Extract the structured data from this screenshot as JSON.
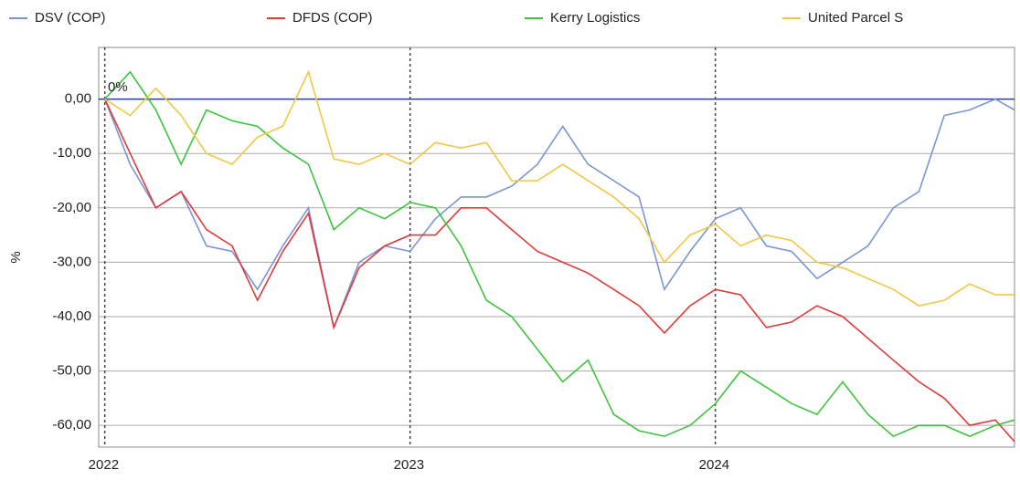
{
  "chart_data": {
    "type": "line",
    "y_label": "%",
    "annotation": "0%",
    "x": [
      2022,
      2022.083,
      2022.167,
      2022.25,
      2022.333,
      2022.417,
      2022.5,
      2022.583,
      2022.667,
      2022.75,
      2022.833,
      2022.917,
      2023,
      2023.083,
      2023.167,
      2023.25,
      2023.333,
      2023.417,
      2023.5,
      2023.583,
      2023.667,
      2023.75,
      2023.833,
      2023.917,
      2024,
      2024.083,
      2024.167,
      2024.25,
      2024.333,
      2024.417,
      2024.5,
      2024.583,
      2024.667,
      2024.75,
      2024.833,
      2024.917,
      2024.98
    ],
    "series": [
      {
        "name": "DSV (COP)",
        "color": "#7b96d6",
        "values": [
          0,
          -12,
          -20,
          -17,
          -27,
          -28,
          -35,
          -27,
          -20,
          -42,
          -30,
          -27,
          -28,
          -22,
          -18,
          -18,
          -16,
          -12,
          -5,
          -12,
          -15,
          -18,
          -35,
          -28,
          -22,
          -20,
          -27,
          -28,
          -33,
          -30,
          -27,
          -20,
          -17,
          -3,
          -2,
          0,
          -2
        ]
      },
      {
        "name": "DFDS (COP)",
        "color": "#e03a3a",
        "values": [
          0,
          -10,
          -20,
          -17,
          -24,
          -27,
          -37,
          -28,
          -21,
          -42,
          -31,
          -27,
          -25,
          -25,
          -20,
          -20,
          -24,
          -28,
          -30,
          -32,
          -35,
          -38,
          -43,
          -38,
          -35,
          -36,
          -42,
          -41,
          -38,
          -40,
          -44,
          -48,
          -52,
          -55,
          -60,
          -59,
          -63
        ]
      },
      {
        "name": "Kerry Logistics",
        "color": "#3ec43e",
        "values": [
          0,
          5,
          -2,
          -12,
          -2,
          -4,
          -5,
          -9,
          -12,
          -24,
          -20,
          -22,
          -19,
          -20,
          -27,
          -37,
          -40,
          -46,
          -52,
          -48,
          -58,
          -61,
          -62,
          -60,
          -56,
          -50,
          -53,
          -56,
          -58,
          -52,
          -58,
          -62,
          -60,
          -60,
          -62,
          -60,
          -59
        ]
      },
      {
        "name": "United Parcel S",
        "color": "#f2c744",
        "values": [
          0,
          -3,
          2,
          -3,
          -10,
          -12,
          -7,
          -5,
          5,
          -11,
          -12,
          -10,
          -12,
          -8,
          -9,
          -8,
          -15,
          -15,
          -12,
          -15,
          -18,
          -22,
          -30,
          -25,
          -23,
          -27,
          -25,
          -26,
          -30,
          -31,
          -33,
          -35,
          -38,
          -37,
          -34,
          -36,
          -36
        ]
      }
    ],
    "xlim": [
      2021.98,
      2024.98
    ],
    "xticks": [
      2022,
      2023,
      2024
    ],
    "ylim": [
      -64,
      9.5
    ],
    "yticks": [
      {
        "value": 0,
        "label": "0,00"
      },
      {
        "value": -10,
        "label": "-10,00"
      },
      {
        "value": -20,
        "label": "-20,00"
      },
      {
        "value": -30,
        "label": "-30,00"
      },
      {
        "value": -40,
        "label": "-40,00"
      },
      {
        "value": -50,
        "label": "-50,00"
      },
      {
        "value": -60,
        "label": "-60,00"
      }
    ],
    "grid": true,
    "zero_line_color": "#2a3f8f"
  }
}
